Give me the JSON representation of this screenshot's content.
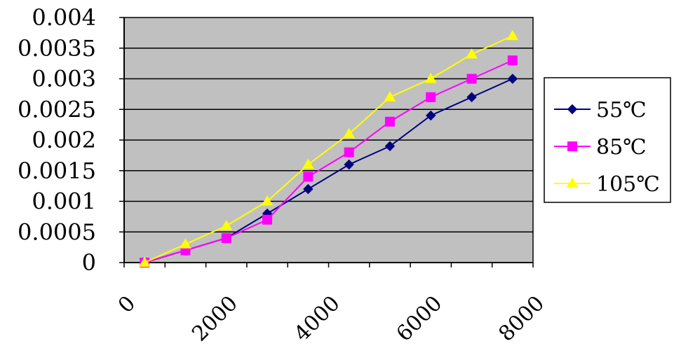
{
  "chart_data": {
    "type": "line",
    "title": "",
    "xlabel": "",
    "ylabel": "",
    "x": [
      0,
      1000,
      2000,
      3000,
      4000,
      5000,
      6000,
      7000,
      8000,
      9000
    ],
    "xlim": [
      0,
      10000
    ],
    "ylim": [
      0,
      0.004
    ],
    "x_tick_labels": [
      "0",
      "2000",
      "4000",
      "6000",
      "8000"
    ],
    "y_tick_labels": [
      "0",
      "0.0005",
      "0.001",
      "0.0015",
      "0.002",
      "0.0025",
      "0.003",
      "0.0035",
      "0.004"
    ],
    "plot_background": "#c0c0c0",
    "grid": true,
    "legend_position": "right",
    "series": [
      {
        "name": "55℃",
        "color": "#000080",
        "marker": "diamond",
        "values": [
          0,
          0.0002,
          0.0004,
          0.0008,
          0.0012,
          0.0016,
          0.0019,
          0.0024,
          0.0027,
          0.003
        ]
      },
      {
        "name": "85℃",
        "color": "#ff00ff",
        "marker": "square",
        "values": [
          0,
          0.0002,
          0.0004,
          0.0007,
          0.0014,
          0.0018,
          0.0023,
          0.0027,
          0.003,
          0.0033
        ]
      },
      {
        "name": "105℃",
        "color": "#ffff00",
        "marker": "triangle",
        "values": [
          0,
          0.0003,
          0.0006,
          0.001,
          0.0016,
          0.0021,
          0.0027,
          0.003,
          0.0034,
          0.0037
        ]
      }
    ]
  }
}
